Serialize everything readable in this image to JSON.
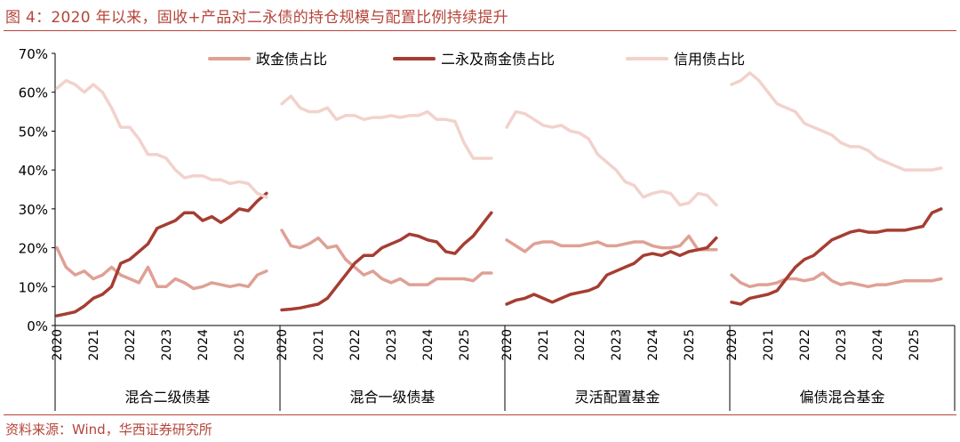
{
  "title": "图 4：2020 年以来，固收+产品对二永债的持仓规模与配置比例持续提升",
  "source": "资料来源：Wind，华西证券研究所",
  "chart_data": {
    "type": "line",
    "ylim": [
      0,
      70
    ],
    "yticks": [
      0,
      10,
      20,
      30,
      40,
      50,
      60,
      70
    ],
    "ytick_labels": [
      "0%",
      "10%",
      "20%",
      "30%",
      "40%",
      "50%",
      "60%",
      "70%"
    ],
    "year_ticks": [
      "2020",
      "2021",
      "2022",
      "2023",
      "2024",
      "2025"
    ],
    "legend_position": "top",
    "grid": false,
    "series_styles": [
      {
        "name": "政金债占比",
        "color": "#dfa195",
        "width": 3.5
      },
      {
        "name": "二永及商金债占比",
        "color": "#a63d32",
        "width": 3.5
      },
      {
        "name": "信用债占比",
        "color": "#f2d2cc",
        "width": 3.5
      }
    ],
    "panels": [
      {
        "label": "混合二级债基",
        "x": [
          2020.0,
          2020.25,
          2020.5,
          2020.75,
          2021.0,
          2021.25,
          2021.5,
          2021.75,
          2022.0,
          2022.25,
          2022.5,
          2022.75,
          2023.0,
          2023.25,
          2023.5,
          2023.75,
          2024.0,
          2024.25,
          2024.5,
          2024.75,
          2025.0,
          2025.25,
          2025.5,
          2025.75
        ],
        "series": [
          {
            "name": "政金债占比",
            "values": [
              20,
              15,
              13,
              14,
              12,
              13,
              15,
              13,
              12,
              11,
              15,
              10,
              10,
              12,
              11,
              9.5,
              10,
              11,
              10.5,
              10,
              10.5,
              10,
              13,
              14
            ]
          },
          {
            "name": "二永及商金债占比",
            "values": [
              2.5,
              3,
              3.5,
              5,
              7,
              8,
              10,
              16,
              17,
              19,
              21,
              25,
              26,
              27,
              29,
              29,
              27,
              28,
              26.5,
              28,
              30,
              29.5,
              32,
              34
            ]
          },
          {
            "name": "信用债占比",
            "values": [
              61,
              63,
              62,
              60,
              62,
              60,
              56,
              51,
              51,
              48,
              44,
              44,
              43,
              40,
              38,
              38.5,
              38.5,
              37.5,
              37.5,
              36.5,
              37,
              36.5,
              34,
              33
            ]
          }
        ]
      },
      {
        "label": "混合一级债基",
        "x": [
          2020.0,
          2020.25,
          2020.5,
          2020.75,
          2021.0,
          2021.25,
          2021.5,
          2021.75,
          2022.0,
          2022.25,
          2022.5,
          2022.75,
          2023.0,
          2023.25,
          2023.5,
          2023.75,
          2024.0,
          2024.25,
          2024.5,
          2024.75,
          2025.0,
          2025.25,
          2025.5,
          2025.75
        ],
        "series": [
          {
            "name": "政金债占比",
            "values": [
              24.5,
              20.5,
              20,
              21,
              22.5,
              20,
              20.5,
              17,
              15,
              13,
              14,
              12,
              11,
              12,
              10.5,
              10.5,
              10.5,
              12,
              12,
              12,
              12,
              11.5,
              13.5,
              13.5
            ]
          },
          {
            "name": "二永及商金债占比",
            "values": [
              4,
              4.2,
              4.5,
              5,
              5.5,
              7,
              10,
              13,
              16,
              18,
              18,
              20,
              21,
              22,
              23.5,
              23,
              22,
              21.5,
              19,
              18.5,
              21,
              23,
              26,
              29
            ]
          },
          {
            "name": "信用债占比",
            "values": [
              57,
              59,
              56,
              55,
              55,
              56,
              53,
              54,
              54,
              53,
              53.5,
              53.5,
              54,
              53.5,
              54,
              54,
              55,
              53,
              53,
              52.5,
              47,
              43,
              43,
              43
            ]
          }
        ]
      },
      {
        "label": "灵活配置基金",
        "x": [
          2020.0,
          2020.25,
          2020.5,
          2020.75,
          2021.0,
          2021.25,
          2021.5,
          2021.75,
          2022.0,
          2022.25,
          2022.5,
          2022.75,
          2023.0,
          2023.25,
          2023.5,
          2023.75,
          2024.0,
          2024.25,
          2024.5,
          2024.75,
          2025.0,
          2025.25,
          2025.5,
          2025.75
        ],
        "series": [
          {
            "name": "政金债占比",
            "values": [
              22,
              20.5,
              19,
              21,
              21.5,
              21.5,
              20.5,
              20.5,
              20.5,
              21,
              21.5,
              20.5,
              20.5,
              21,
              21.5,
              21.5,
              20.5,
              20,
              20,
              20.5,
              23,
              19.5,
              19.5,
              19.5
            ]
          },
          {
            "name": "二永及商金债占比",
            "values": [
              5.5,
              6.5,
              7,
              8,
              7,
              6,
              7,
              8,
              8.5,
              9,
              10,
              13,
              14,
              15,
              16,
              18,
              18.5,
              18,
              19,
              18,
              19,
              19.5,
              20,
              22.5
            ]
          },
          {
            "name": "信用债占比",
            "values": [
              51,
              55,
              54.5,
              53,
              51.5,
              51,
              51.5,
              50,
              49.5,
              48,
              44,
              42,
              40,
              37,
              36,
              33,
              34,
              34.5,
              34,
              31,
              31.5,
              34,
              33.5,
              31
            ]
          }
        ]
      },
      {
        "label": "偏债混合基金",
        "x": [
          2020.0,
          2020.25,
          2020.5,
          2020.75,
          2021.0,
          2021.25,
          2021.5,
          2021.75,
          2022.0,
          2022.25,
          2022.5,
          2022.75,
          2023.0,
          2023.25,
          2023.5,
          2023.75,
          2024.0,
          2024.25,
          2024.5,
          2024.75,
          2025.0,
          2025.25,
          2025.5,
          2025.75
        ],
        "series": [
          {
            "name": "政金债占比",
            "values": [
              13,
              11,
              10,
              10.5,
              10.5,
              11,
              12,
              12,
              11.5,
              12,
              13.5,
              11.5,
              10.5,
              11,
              10.5,
              10,
              10.5,
              10.5,
              11,
              11.5,
              11.5,
              11.5,
              11.5,
              12
            ]
          },
          {
            "name": "二永及商金债占比",
            "values": [
              6,
              5.5,
              7,
              7.5,
              8,
              9,
              12,
              15,
              17,
              18,
              20,
              22,
              23,
              24,
              24.5,
              24,
              24,
              24.5,
              24.5,
              24.5,
              25,
              25.5,
              29,
              30
            ]
          },
          {
            "name": "信用债占比",
            "values": [
              62,
              63,
              65,
              63,
              60,
              57,
              56,
              55,
              52,
              51,
              50,
              49,
              47,
              46,
              46,
              45,
              43,
              42,
              41,
              40,
              40,
              40,
              40,
              40.5
            ]
          }
        ]
      }
    ]
  }
}
